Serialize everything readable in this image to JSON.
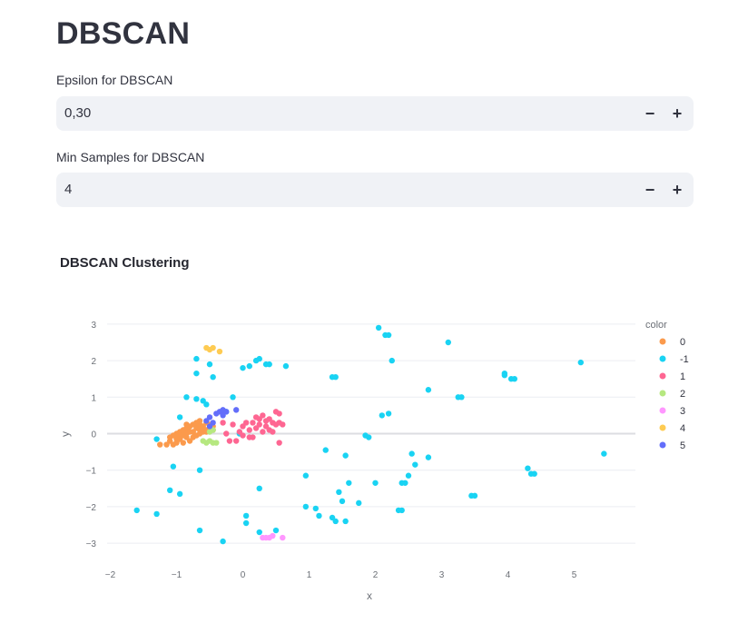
{
  "page": {
    "title": "DBSCAN"
  },
  "epsilon": {
    "label": "Epsilon for DBSCAN",
    "value": "0,30",
    "minus": "−",
    "plus": "+"
  },
  "min_samples": {
    "label": "Min Samples for DBSCAN",
    "value": "4",
    "minus": "−",
    "plus": "+"
  },
  "chart": {
    "title": "DBSCAN Clustering"
  },
  "chart_data": {
    "type": "scatter",
    "title": "DBSCAN Clustering",
    "xlabel": "x",
    "ylabel": "y",
    "xlim": [
      -2,
      6
    ],
    "ylim": [
      -3.3,
      3.3
    ],
    "xticks": [
      "−2",
      "−1",
      "0",
      "1",
      "2",
      "3",
      "4",
      "5"
    ],
    "xtick_values": [
      -2,
      -1,
      0,
      1,
      2,
      3,
      4,
      5
    ],
    "yticks": [
      "3",
      "2",
      "1",
      "0",
      "−1",
      "−2",
      "−3"
    ],
    "ytick_values": [
      3,
      2,
      1,
      0,
      -1,
      -2,
      -3
    ],
    "grid": true,
    "legend_title": "color",
    "legend_position": "right",
    "series": [
      {
        "name": "0",
        "color": "#fb9a4c",
        "points": [
          [
            -1.25,
            -0.3
          ],
          [
            -1.15,
            -0.3
          ],
          [
            -1.05,
            -0.3
          ],
          [
            -1.1,
            -0.2
          ],
          [
            -1.0,
            -0.25
          ],
          [
            -0.95,
            -0.15
          ],
          [
            -0.9,
            -0.25
          ],
          [
            -0.85,
            -0.1
          ],
          [
            -0.8,
            -0.2
          ],
          [
            -0.75,
            -0.1
          ],
          [
            -0.7,
            -0.05
          ],
          [
            -0.65,
            0.0
          ],
          [
            -0.6,
            0.05
          ],
          [
            -0.55,
            0.1
          ],
          [
            -0.5,
            0.15
          ],
          [
            -0.45,
            0.2
          ],
          [
            -1.05,
            -0.05
          ],
          [
            -1.0,
            0.0
          ],
          [
            -0.95,
            0.05
          ],
          [
            -0.9,
            0.1
          ],
          [
            -0.85,
            0.15
          ],
          [
            -0.8,
            0.2
          ],
          [
            -0.75,
            0.25
          ],
          [
            -0.7,
            0.3
          ],
          [
            -0.65,
            0.25
          ],
          [
            -0.6,
            0.2
          ],
          [
            -0.55,
            0.3
          ],
          [
            -0.5,
            0.25
          ],
          [
            -1.1,
            -0.1
          ],
          [
            -0.95,
            -0.05
          ],
          [
            -0.85,
            0.0
          ],
          [
            -0.75,
            0.05
          ],
          [
            -0.65,
            0.1
          ],
          [
            -0.6,
            0.15
          ],
          [
            -0.7,
            0.15
          ],
          [
            -0.8,
            0.05
          ],
          [
            -0.9,
            -0.05
          ],
          [
            -1.0,
            -0.15
          ],
          [
            -0.55,
            0.05
          ],
          [
            -0.45,
            0.1
          ],
          [
            -0.65,
            0.35
          ],
          [
            -0.85,
            0.25
          ]
        ]
      },
      {
        "name": "-1",
        "color": "#19d3f3",
        "points": [
          [
            -1.6,
            -2.1
          ],
          [
            -1.3,
            -2.2
          ],
          [
            -1.3,
            -0.15
          ],
          [
            -1.1,
            -1.55
          ],
          [
            -1.05,
            -0.9
          ],
          [
            -0.95,
            -1.65
          ],
          [
            -0.95,
            0.45
          ],
          [
            -0.85,
            1.0
          ],
          [
            -0.7,
            0.95
          ],
          [
            -0.7,
            2.05
          ],
          [
            -0.7,
            1.65
          ],
          [
            -0.65,
            -1.0
          ],
          [
            -0.65,
            -2.65
          ],
          [
            -0.6,
            0.9
          ],
          [
            -0.55,
            0.8
          ],
          [
            -0.5,
            1.9
          ],
          [
            -0.45,
            1.55
          ],
          [
            -0.3,
            -2.95
          ],
          [
            -0.25,
            0.6
          ],
          [
            -0.15,
            1.0
          ],
          [
            -0.05,
            -0.0
          ],
          [
            0.0,
            1.8
          ],
          [
            0.05,
            -2.25
          ],
          [
            0.05,
            -2.45
          ],
          [
            0.1,
            1.85
          ],
          [
            0.2,
            2.0
          ],
          [
            0.25,
            2.05
          ],
          [
            0.25,
            -1.5
          ],
          [
            0.25,
            -2.7
          ],
          [
            0.35,
            1.9
          ],
          [
            0.4,
            1.9
          ],
          [
            0.5,
            -2.65
          ],
          [
            0.65,
            1.85
          ],
          [
            0.95,
            -1.15
          ],
          [
            0.95,
            -2.0
          ],
          [
            1.1,
            -2.05
          ],
          [
            1.15,
            -2.25
          ],
          [
            1.25,
            -0.45
          ],
          [
            1.35,
            1.55
          ],
          [
            1.4,
            1.55
          ],
          [
            1.35,
            -2.3
          ],
          [
            1.4,
            -2.4
          ],
          [
            1.45,
            -1.6
          ],
          [
            1.5,
            -1.85
          ],
          [
            1.55,
            -2.4
          ],
          [
            1.55,
            -0.6
          ],
          [
            1.6,
            -1.35
          ],
          [
            1.75,
            -1.9
          ],
          [
            1.85,
            -0.05
          ],
          [
            1.9,
            -0.1
          ],
          [
            2.0,
            -1.35
          ],
          [
            2.05,
            2.9
          ],
          [
            2.1,
            0.5
          ],
          [
            2.15,
            2.7
          ],
          [
            2.2,
            2.7
          ],
          [
            2.2,
            0.55
          ],
          [
            2.25,
            2.0
          ],
          [
            2.35,
            -2.1
          ],
          [
            2.4,
            -2.1
          ],
          [
            2.4,
            -1.35
          ],
          [
            2.45,
            -1.35
          ],
          [
            2.5,
            -1.15
          ],
          [
            2.55,
            -0.55
          ],
          [
            2.6,
            -0.85
          ],
          [
            2.8,
            1.2
          ],
          [
            2.8,
            -0.65
          ],
          [
            3.1,
            2.5
          ],
          [
            3.25,
            1.0
          ],
          [
            3.3,
            1.0
          ],
          [
            3.45,
            -1.7
          ],
          [
            3.5,
            -1.7
          ],
          [
            3.95,
            1.65
          ],
          [
            3.95,
            1.6
          ],
          [
            4.05,
            1.5
          ],
          [
            4.1,
            1.5
          ],
          [
            4.3,
            -0.95
          ],
          [
            4.35,
            -1.1
          ],
          [
            4.4,
            -1.1
          ],
          [
            5.1,
            1.95
          ],
          [
            5.45,
            -0.55
          ]
        ]
      },
      {
        "name": "1",
        "color": "#fe6692",
        "points": [
          [
            -0.3,
            0.3
          ],
          [
            -0.25,
            0.0
          ],
          [
            -0.2,
            -0.2
          ],
          [
            -0.15,
            0.25
          ],
          [
            -0.1,
            -0.2
          ],
          [
            -0.05,
            0.05
          ],
          [
            0.0,
            0.2
          ],
          [
            0.05,
            0.3
          ],
          [
            0.1,
            0.1
          ],
          [
            0.1,
            -0.1
          ],
          [
            0.15,
            0.3
          ],
          [
            0.15,
            -0.1
          ],
          [
            0.2,
            0.45
          ],
          [
            0.2,
            0.15
          ],
          [
            0.25,
            0.4
          ],
          [
            0.25,
            0.25
          ],
          [
            0.3,
            0.05
          ],
          [
            0.3,
            0.5
          ],
          [
            0.35,
            0.35
          ],
          [
            0.35,
            0.2
          ],
          [
            0.4,
            0.1
          ],
          [
            0.4,
            0.4
          ],
          [
            0.45,
            0.3
          ],
          [
            0.45,
            0.05
          ],
          [
            0.5,
            0.6
          ],
          [
            0.5,
            0.25
          ],
          [
            0.55,
            0.55
          ],
          [
            0.55,
            0.3
          ],
          [
            0.6,
            0.25
          ],
          [
            0.55,
            -0.25
          ],
          [
            0.0,
            -0.05
          ]
        ]
      },
      {
        "name": "2",
        "color": "#b6e880",
        "points": [
          [
            -0.6,
            -0.2
          ],
          [
            -0.55,
            -0.25
          ],
          [
            -0.5,
            -0.2
          ],
          [
            -0.45,
            -0.25
          ],
          [
            -0.4,
            -0.25
          ],
          [
            -0.5,
            0.05
          ],
          [
            -0.45,
            0.1
          ]
        ]
      },
      {
        "name": "3",
        "color": "#ff97ff",
        "points": [
          [
            0.3,
            -2.85
          ],
          [
            0.35,
            -2.85
          ],
          [
            0.4,
            -2.85
          ],
          [
            0.45,
            -2.8
          ],
          [
            0.6,
            -2.85
          ]
        ]
      },
      {
        "name": "4",
        "color": "#fecb52",
        "points": [
          [
            -0.55,
            2.35
          ],
          [
            -0.5,
            2.3
          ],
          [
            -0.45,
            2.35
          ],
          [
            -0.35,
            2.25
          ]
        ]
      },
      {
        "name": "5",
        "color": "#636efa",
        "points": [
          [
            -0.55,
            0.35
          ],
          [
            -0.5,
            0.45
          ],
          [
            -0.45,
            0.3
          ],
          [
            -0.4,
            0.55
          ],
          [
            -0.35,
            0.6
          ],
          [
            -0.3,
            0.65
          ],
          [
            -0.3,
            0.5
          ],
          [
            -0.25,
            0.6
          ],
          [
            -0.5,
            0.2
          ],
          [
            -0.1,
            0.65
          ]
        ]
      }
    ]
  }
}
